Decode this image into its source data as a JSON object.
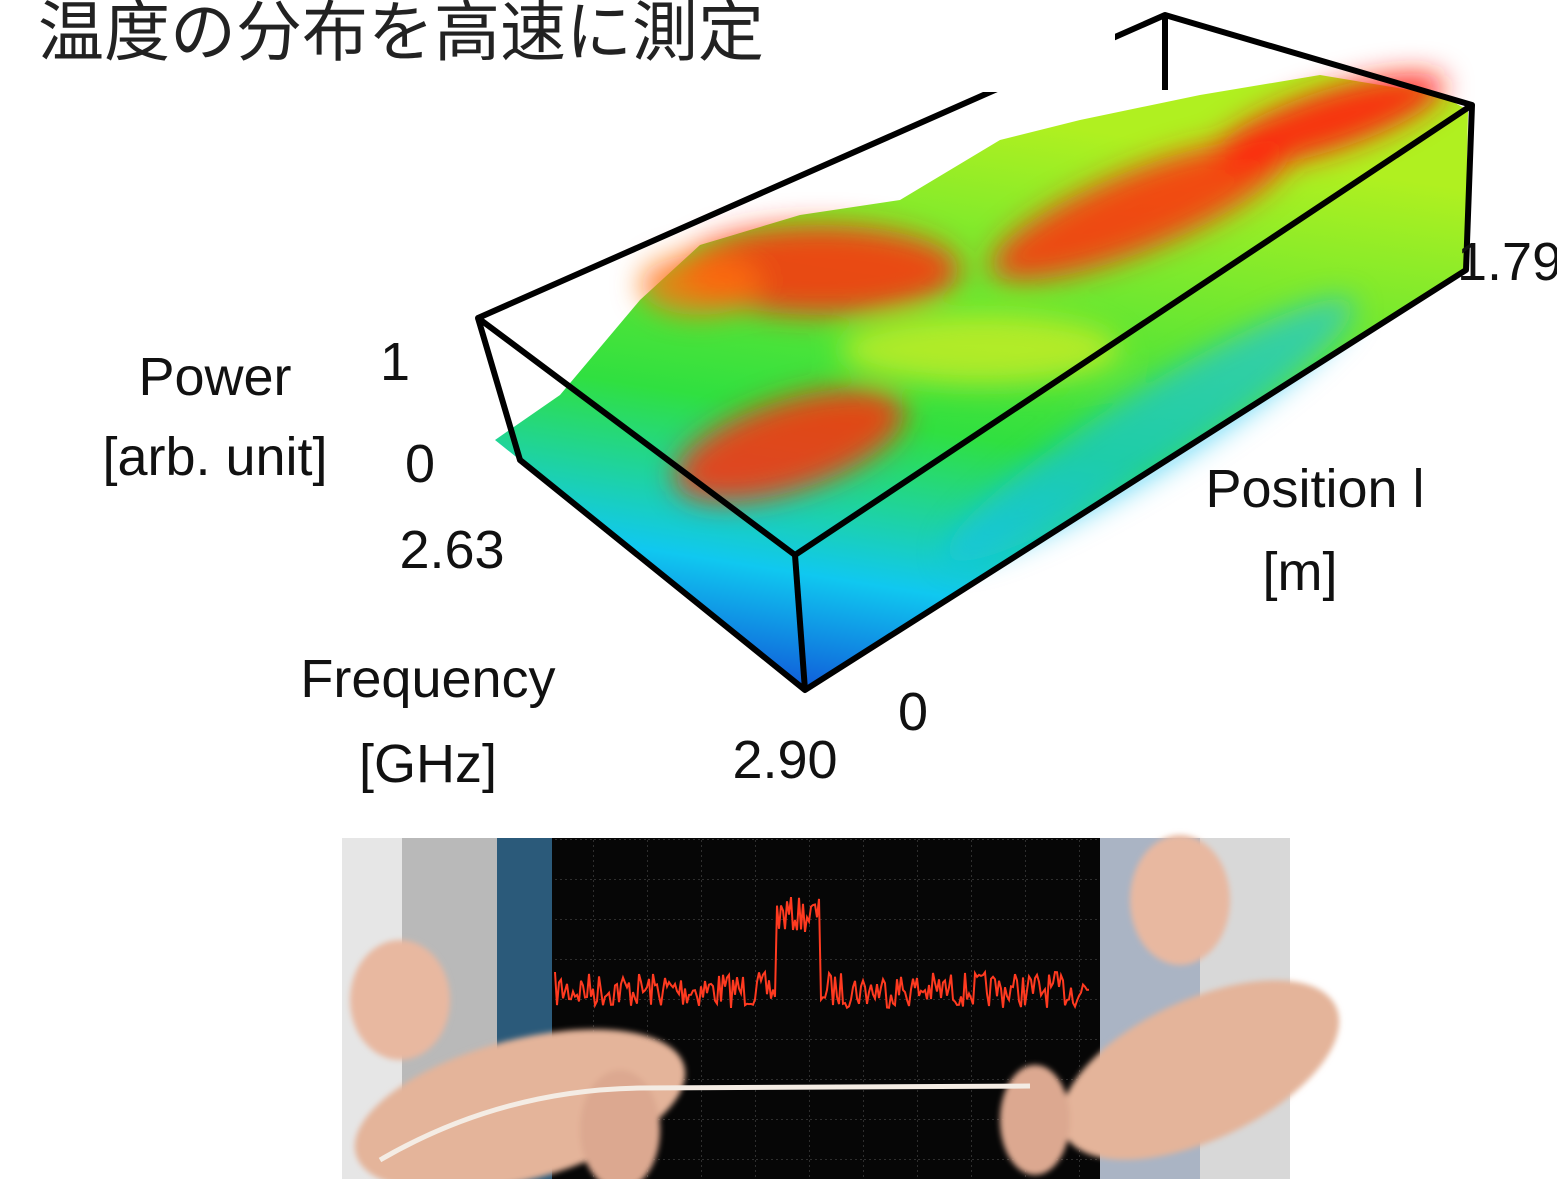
{
  "title": "温度の分布を高速に測定",
  "power_axis": {
    "label": "Power",
    "unit": "[arb. unit]",
    "ticks": [
      "1",
      "0"
    ]
  },
  "frequency_axis": {
    "label": "Frequency",
    "unit": "[GHz]",
    "ticks": [
      "2.63",
      "2.90"
    ]
  },
  "position_axis": {
    "label": "Position l",
    "unit": "[m]",
    "ticks": [
      "0",
      "1.79"
    ]
  }
}
